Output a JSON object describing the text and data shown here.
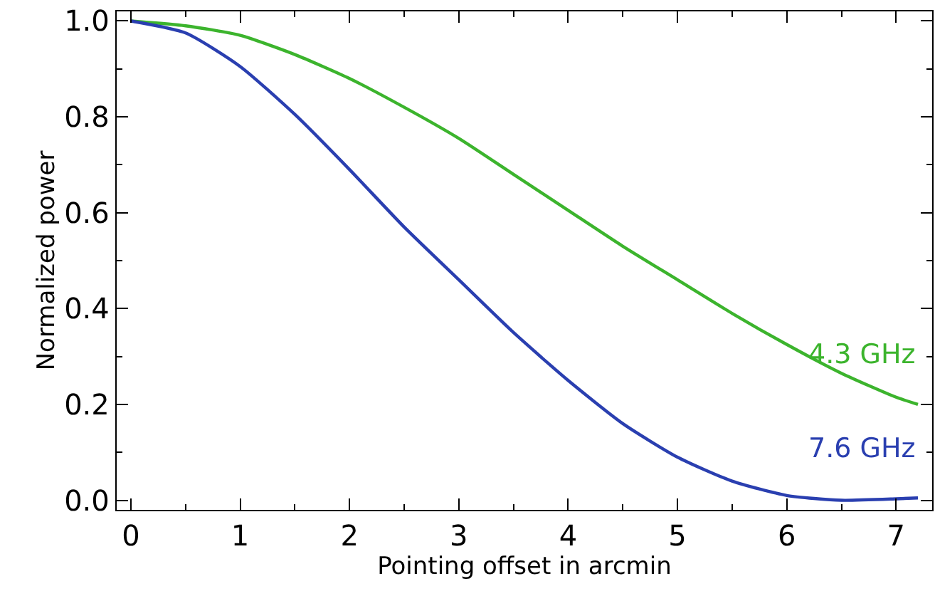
{
  "chart_data": {
    "type": "line",
    "xlabel": "Pointing offset in arcmin",
    "ylabel": "Normalized power",
    "x": [
      0,
      0.5,
      1,
      1.5,
      2,
      2.5,
      3,
      3.5,
      4,
      4.5,
      5,
      5.5,
      6,
      6.5,
      7,
      7.2
    ],
    "series": [
      {
        "name": "4.3 GHz",
        "color": "#3cb42d",
        "values": [
          1.0,
          0.99,
          0.97,
          0.93,
          0.88,
          0.82,
          0.755,
          0.68,
          0.605,
          0.53,
          0.46,
          0.39,
          0.325,
          0.265,
          0.215,
          0.2
        ]
      },
      {
        "name": "7.6 GHz",
        "color": "#2a3fb0",
        "values": [
          1.0,
          0.975,
          0.905,
          0.805,
          0.69,
          0.57,
          0.46,
          0.35,
          0.25,
          0.16,
          0.09,
          0.04,
          0.01,
          0.0,
          0.003,
          0.005
        ]
      }
    ],
    "xlim": [
      -0.13,
      7.33
    ],
    "ylim": [
      -0.02,
      1.02
    ],
    "xticks": [
      0,
      1,
      2,
      3,
      4,
      5,
      6,
      7
    ],
    "yticks": [
      {
        "value": 0,
        "label": "0.0"
      },
      0.2,
      0.4,
      0.6,
      0.8,
      {
        "value": 1,
        "label": "1.0"
      }
    ],
    "grid": false,
    "legend": false,
    "marker": "none",
    "line_style": "solid"
  }
}
